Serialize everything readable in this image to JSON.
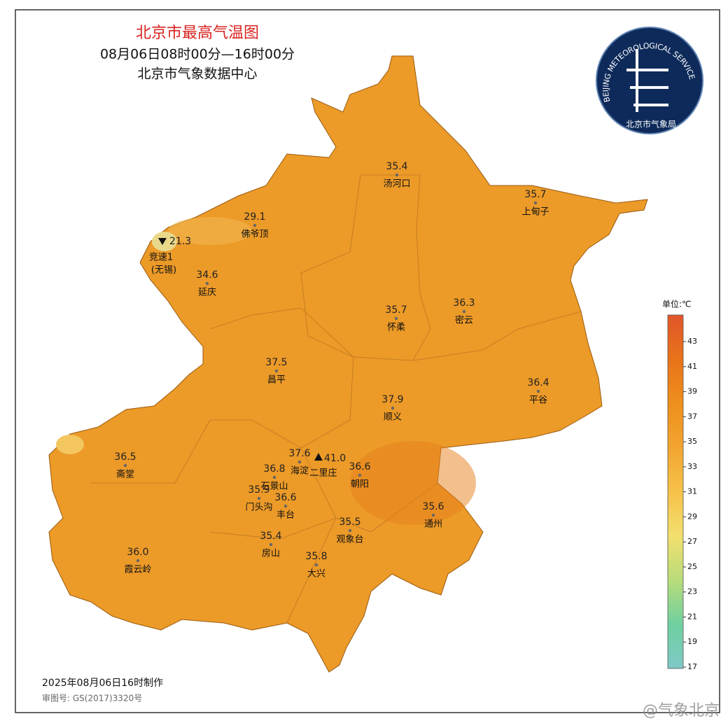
{
  "header": {
    "title": "北京市最高气温图",
    "subtitle": "08月06日08时00分—16时00分",
    "source": "北京市气象数据中心"
  },
  "logo": {
    "ring_text": "BEIJING METEOROLOGICAL SERVICE",
    "name": "北京市气象局"
  },
  "stations": [
    {
      "name": "汤河口",
      "value": 35.4
    },
    {
      "name": "上甸子",
      "value": 35.7
    },
    {
      "name": "佛爷顶",
      "value": 29.1
    },
    {
      "name": "延庆",
      "value": 34.6
    },
    {
      "name": "怀柔",
      "value": 35.7
    },
    {
      "name": "密云",
      "value": 36.3
    },
    {
      "name": "昌平",
      "value": 37.5
    },
    {
      "name": "平谷",
      "value": 36.4
    },
    {
      "name": "顺义",
      "value": 37.9
    },
    {
      "name": "海淀",
      "value": 37.6
    },
    {
      "name": "朝阳",
      "value": 36.6
    },
    {
      "name": "石景山",
      "value": 36.8
    },
    {
      "name": "门头沟",
      "value": 35.9
    },
    {
      "name": "丰台",
      "value": 36.6
    },
    {
      "name": "斋堂",
      "value": 36.5
    },
    {
      "name": "通州",
      "value": 35.6
    },
    {
      "name": "观象台",
      "value": 35.5
    },
    {
      "name": "房山",
      "value": 35.4
    },
    {
      "name": "大兴",
      "value": 35.8
    },
    {
      "name": "霞云岭",
      "value": 36,
      "value_label": "36.0"
    }
  ],
  "extremes": {
    "min": {
      "name": "竞速1",
      "note": "(无锡)",
      "value": 21.3
    },
    "max": {
      "name": "二里庄",
      "value": 41,
      "value_label": "41.0"
    }
  },
  "legend": {
    "unit_label": "单位:℃",
    "ticks": [
      17,
      19,
      21,
      23,
      25,
      27,
      29,
      31,
      33,
      35,
      37,
      39,
      41,
      43
    ],
    "colors": [
      "#7fc8c8",
      "#6fd0a0",
      "#b8dc7a",
      "#f3df6e",
      "#f6c24a",
      "#f2a530",
      "#ee8f1c",
      "#e8731a",
      "#e0562a"
    ]
  },
  "footer": {
    "made": "2025年08月06日16时制作",
    "approval": "审图号: GS(2017)3320号"
  },
  "watermark": "@气象北京"
}
